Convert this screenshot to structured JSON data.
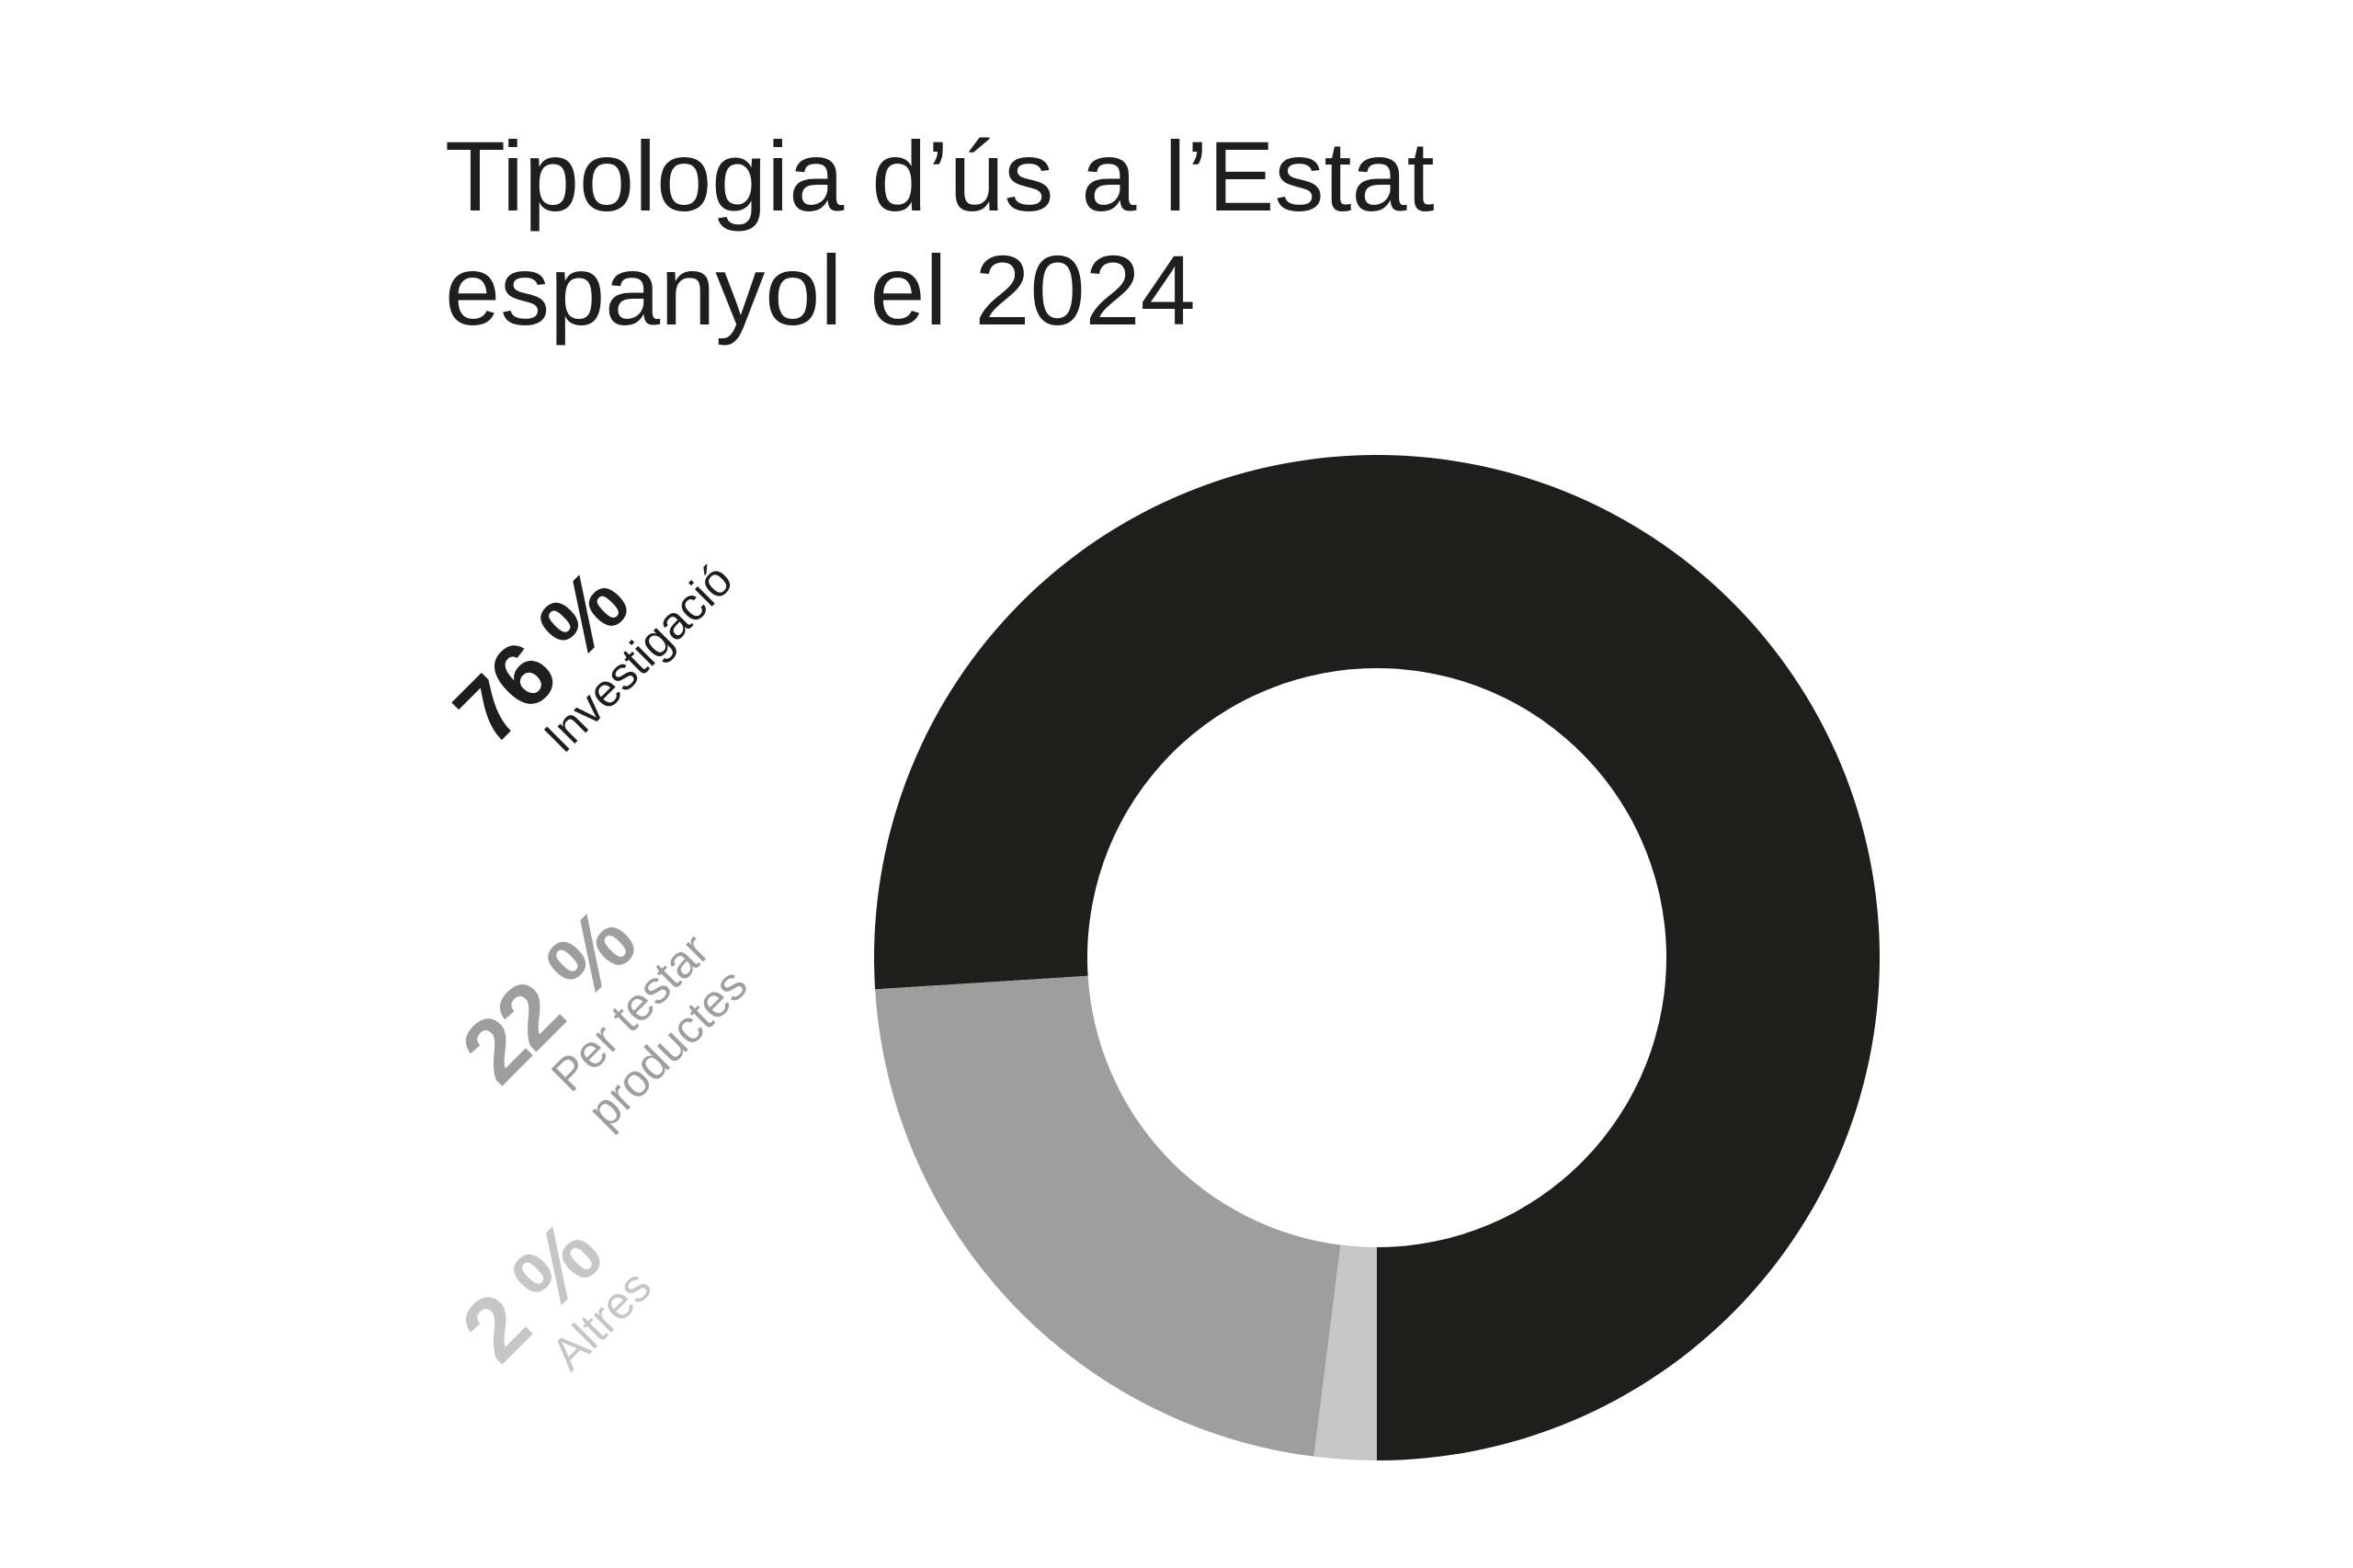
{
  "chart_data": {
    "type": "donut",
    "title": "Tipologia d’ús a l’Estat espanyol el 2024",
    "categories": [
      "Investigació",
      "Per testar productes",
      "Altres"
    ],
    "values": [
      76,
      22,
      2
    ],
    "value_labels": [
      "76 %",
      "22 %",
      "2 %"
    ],
    "colors": [
      "#1e1e1c",
      "#9e9e9e",
      "#c6c6c6"
    ]
  }
}
